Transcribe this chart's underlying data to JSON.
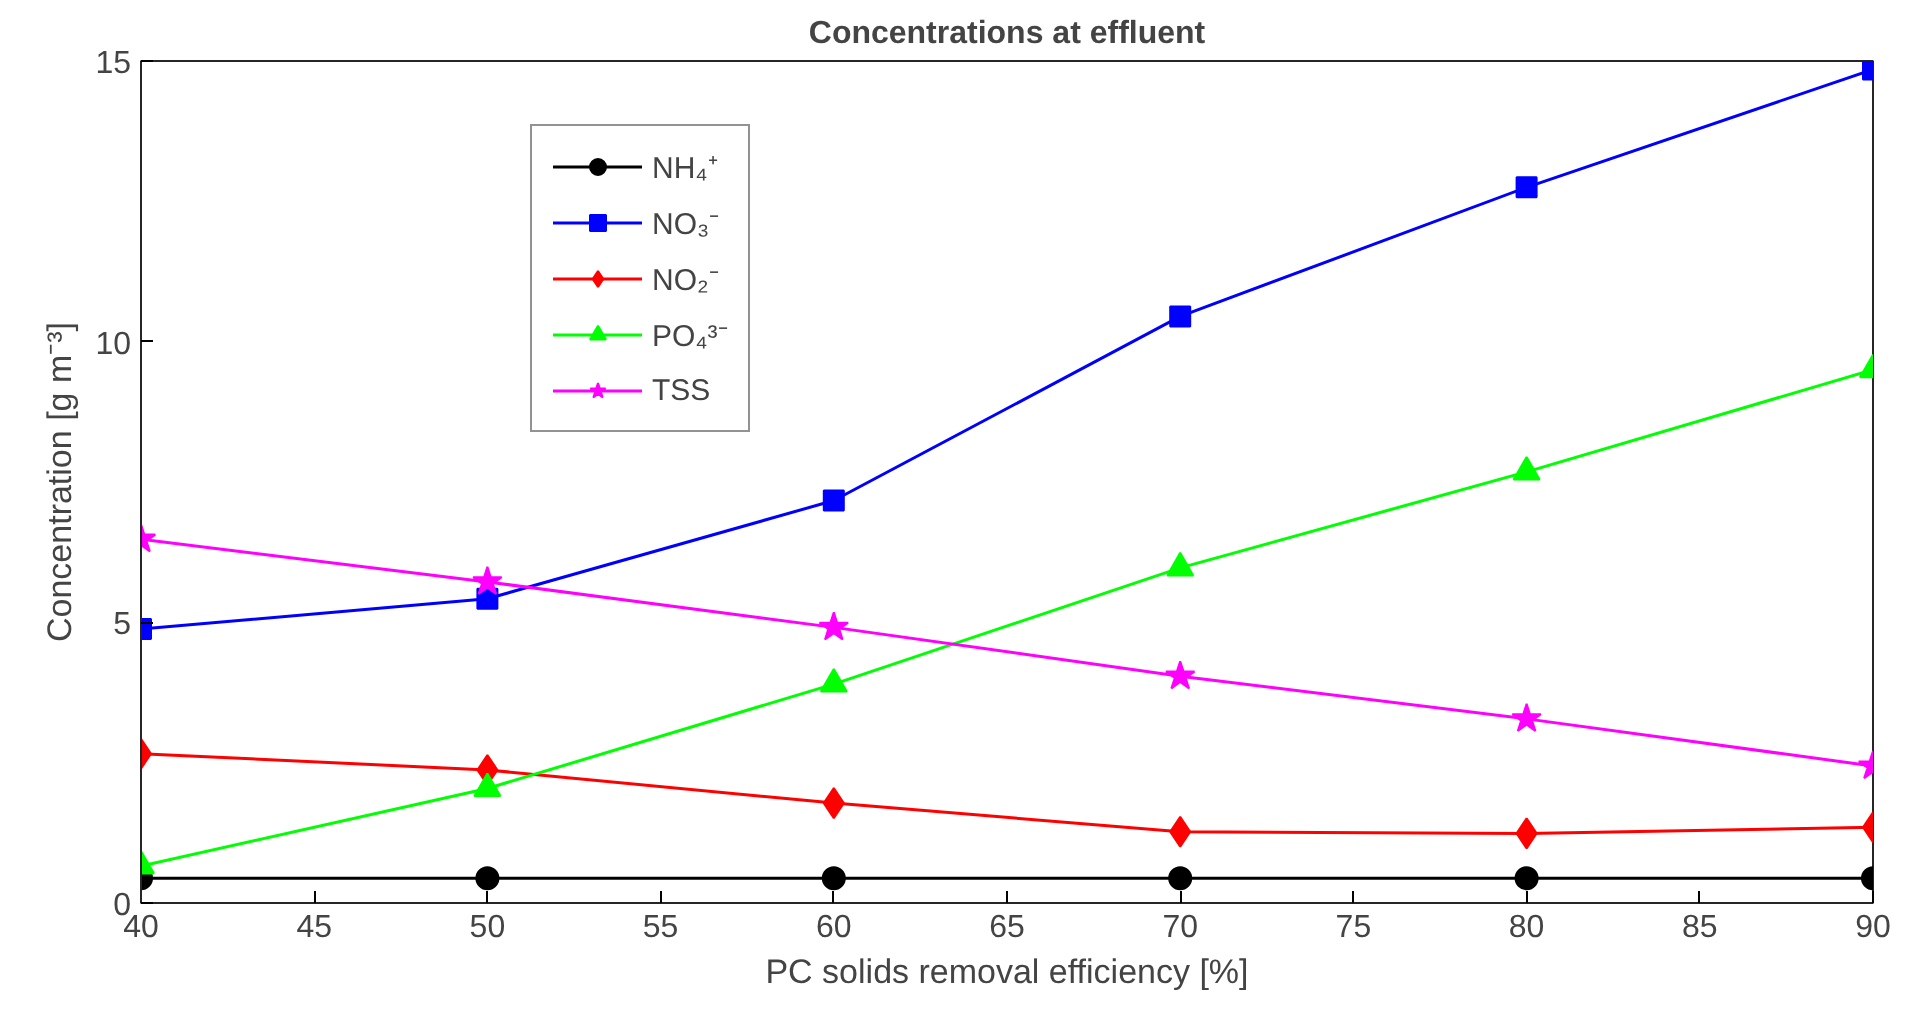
{
  "chart_data": {
    "type": "line",
    "title": "Concentrations at effluent",
    "xlabel": "PC solids removal efficiency [%]",
    "ylabel": "Concentration [g m⁻³]",
    "x": [
      40,
      50,
      60,
      70,
      80,
      90
    ],
    "series": [
      {
        "name": "NH₄⁺",
        "color": "#000000",
        "marker": "circle",
        "values": [
          0.44,
          0.44,
          0.44,
          0.44,
          0.44,
          0.44
        ]
      },
      {
        "name": "NO₃⁻",
        "color": "#0000ff",
        "marker": "square",
        "values": [
          4.88,
          5.42,
          7.17,
          10.45,
          12.75,
          14.85
        ]
      },
      {
        "name": "NO₂⁻",
        "color": "#ff0000",
        "marker": "diamond",
        "values": [
          2.66,
          2.37,
          1.78,
          1.27,
          1.24,
          1.35
        ]
      },
      {
        "name": "PO₄³⁻",
        "color": "#00ff00",
        "marker": "triangle",
        "values": [
          0.66,
          2.04,
          3.9,
          5.97,
          7.68,
          9.5
        ]
      },
      {
        "name": "TSS",
        "color": "#ff00ff",
        "marker": "star",
        "values": [
          6.48,
          5.72,
          4.91,
          4.04,
          3.28,
          2.44
        ]
      }
    ],
    "xlim": [
      40,
      90
    ],
    "xticks": [
      40,
      45,
      50,
      55,
      60,
      65,
      70,
      75,
      80,
      85,
      90
    ],
    "ylim": [
      0,
      15
    ],
    "yticks": [
      0,
      5,
      10,
      15
    ],
    "grid": false,
    "legend": "top left",
    "line_style": "solid"
  }
}
